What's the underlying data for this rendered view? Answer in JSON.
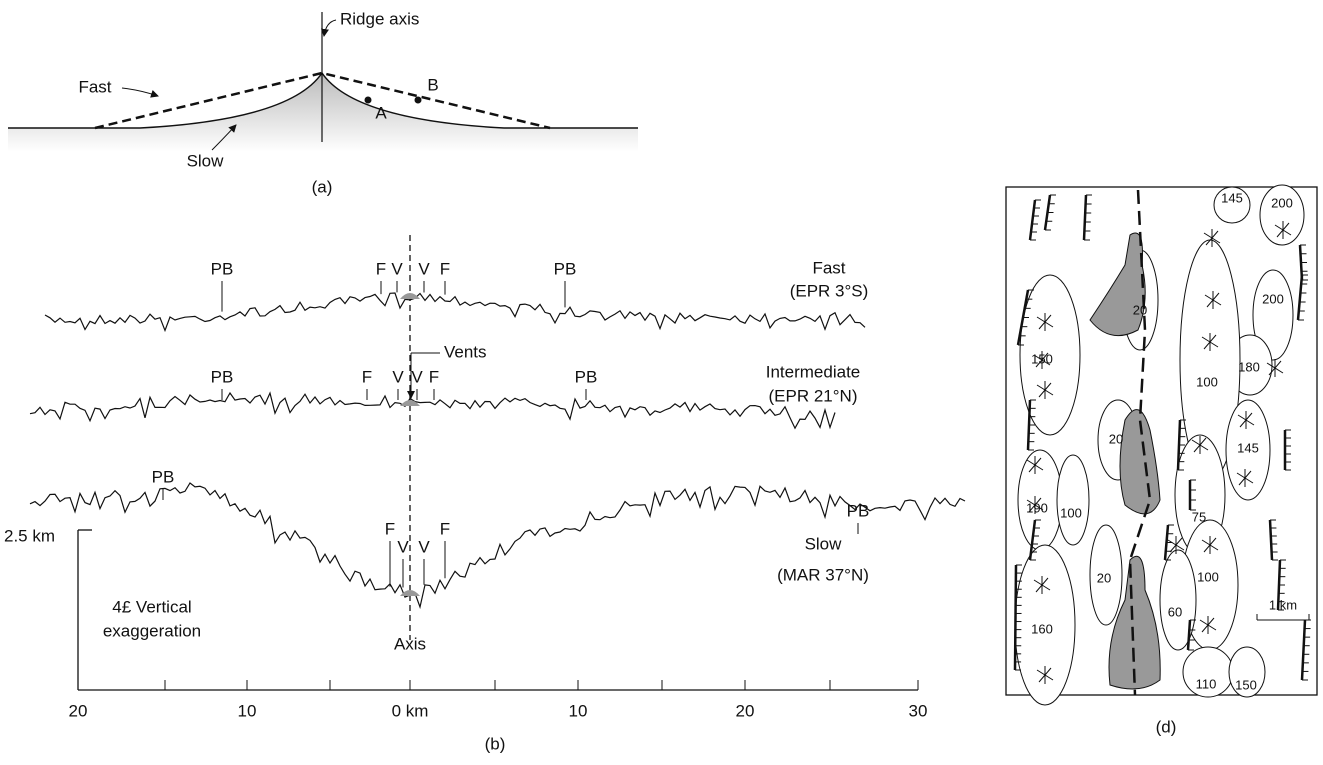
{
  "panel_a": {
    "ridge_axis": "Ridge axis",
    "fast": "Fast",
    "slow": "Slow",
    "point_a": "A",
    "point_b": "B",
    "caption": "(a)"
  },
  "panel_b": {
    "profiles": [
      {
        "name": "Fast",
        "location": "(EPR 3°S)",
        "markers": [
          "PB",
          "F",
          "V",
          "V",
          "F",
          "PB"
        ]
      },
      {
        "name": "Intermediate",
        "location": "(EPR 21°N)",
        "markers": [
          "PB",
          "F",
          "V",
          "V",
          "F",
          "PB"
        ]
      },
      {
        "name": "Slow",
        "location": "(MAR 37°N)",
        "markers": [
          "PB",
          "F",
          "V",
          "V",
          "F",
          "PB"
        ]
      }
    ],
    "vents": "Vents",
    "axis": "Axis",
    "scale": "2.5 km",
    "exaggeration": [
      "4£ Vertical",
      "exaggeration"
    ],
    "x_ticks": [
      "20",
      "10",
      "0 km",
      "10",
      "20",
      "30"
    ],
    "caption": "(b)"
  },
  "panel_d": {
    "labels": [
      "145",
      "200",
      "20",
      "200",
      "150",
      "180",
      "100",
      "20",
      "145",
      "190",
      "100",
      "75",
      "20",
      "100",
      "60",
      "160",
      "110",
      "150"
    ],
    "scale": "1 km",
    "caption": "(d)"
  }
}
